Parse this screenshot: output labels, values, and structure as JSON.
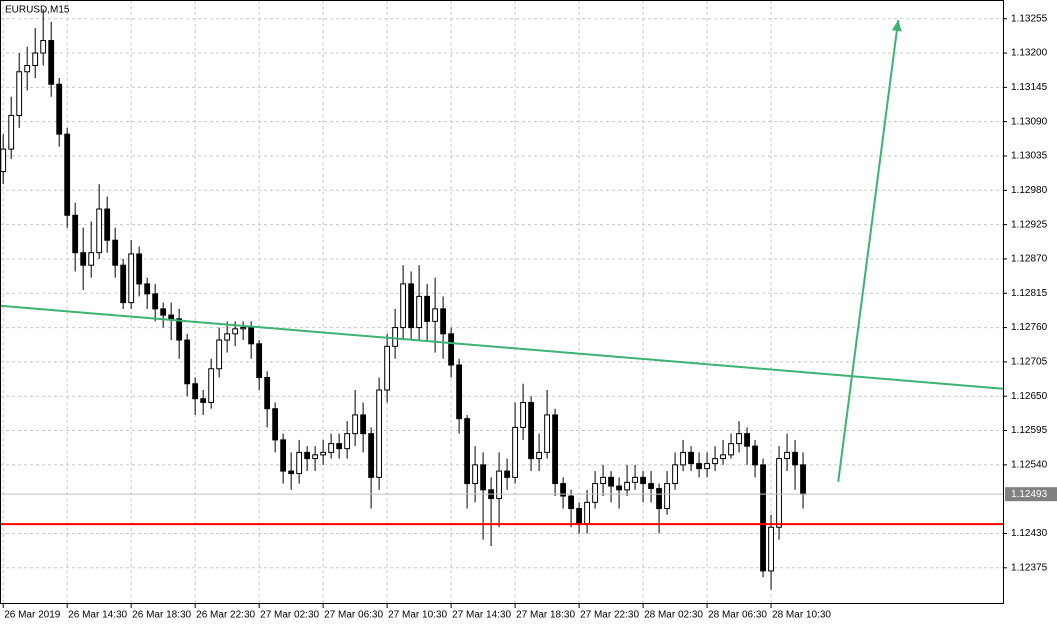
{
  "chart_data": {
    "type": "candlestick",
    "title": "EURUSD,M15",
    "categories": [
      "26 Mar 2019",
      null,
      null,
      null,
      null,
      null,
      null,
      null,
      "26 Mar 14:30",
      null,
      null,
      null,
      null,
      null,
      null,
      null,
      "26 Mar 18:30",
      null,
      null,
      null,
      null,
      null,
      null,
      null,
      "26 Mar 22:30",
      null,
      null,
      null,
      null,
      null,
      null,
      null,
      "27 Mar 02:30",
      null,
      null,
      null,
      null,
      null,
      null,
      null,
      "27 Mar 06:30",
      null,
      null,
      null,
      null,
      null,
      null,
      null,
      "27 Mar 10:30",
      null,
      null,
      null,
      null,
      null,
      null,
      null,
      "27 Mar 14:30",
      null,
      null,
      null,
      null,
      null,
      null,
      null,
      "27 Mar 18:30",
      null,
      null,
      null,
      null,
      null,
      null,
      null,
      "27 Mar 22:30",
      null,
      null,
      null,
      null,
      null,
      null,
      null,
      "28 Mar 02:30",
      null,
      null,
      null,
      null,
      null,
      null,
      null,
      "28 Mar 06:30",
      null,
      null,
      null,
      null,
      null,
      null,
      null,
      "28 Mar 10:30",
      null,
      null,
      null,
      null
    ],
    "candles": [
      [
        1.1301,
        1.1307,
        1.1299,
        1.13046
      ],
      [
        1.13046,
        1.1313,
        1.1303,
        1.131
      ],
      [
        1.131,
        1.132,
        1.1308,
        1.1317
      ],
      [
        1.1317,
        1.1321,
        1.1314,
        1.1318
      ],
      [
        1.1318,
        1.1324,
        1.1316,
        1.132
      ],
      [
        1.132,
        1.1327,
        1.1318,
        1.1322
      ],
      [
        1.1322,
        1.1325,
        1.1313,
        1.1315
      ],
      [
        1.1315,
        1.1316,
        1.1305,
        1.1307
      ],
      [
        1.1307,
        1.1308,
        1.1292,
        1.1294
      ],
      [
        1.1294,
        1.1296,
        1.1285,
        1.1288
      ],
      [
        1.1288,
        1.1292,
        1.1282,
        1.1286
      ],
      [
        1.1286,
        1.1293,
        1.1284,
        1.1288
      ],
      [
        1.1288,
        1.1299,
        1.1287,
        1.1295
      ],
      [
        1.1295,
        1.1297,
        1.1288,
        1.129
      ],
      [
        1.129,
        1.1292,
        1.1284,
        1.1286
      ],
      [
        1.1286,
        1.1287,
        1.1279,
        1.128
      ],
      [
        1.128,
        1.129,
        1.1279,
        1.12878
      ],
      [
        1.12878,
        1.1289,
        1.1281,
        1.1283
      ],
      [
        1.1283,
        1.1284,
        1.1279,
        1.12814
      ],
      [
        1.12814,
        1.1283,
        1.1277,
        1.1279
      ],
      [
        1.1279,
        1.128,
        1.1276,
        1.1278
      ],
      [
        1.1278,
        1.128,
        1.1274,
        1.12774
      ],
      [
        1.12774,
        1.1279,
        1.1271,
        1.1274
      ],
      [
        1.1274,
        1.1275,
        1.1265,
        1.1267
      ],
      [
        1.1267,
        1.1268,
        1.1262,
        1.12646
      ],
      [
        1.12646,
        1.1266,
        1.1262,
        1.1264
      ],
      [
        1.1264,
        1.1271,
        1.1263,
        1.12694
      ],
      [
        1.12694,
        1.1276,
        1.1268,
        1.1274
      ],
      [
        1.1274,
        1.1277,
        1.1272,
        1.1275
      ],
      [
        1.1275,
        1.1277,
        1.1273,
        1.12758
      ],
      [
        1.12758,
        1.1277,
        1.1274,
        1.1276
      ],
      [
        1.1276,
        1.1277,
        1.1271,
        1.12734
      ],
      [
        1.12734,
        1.1274,
        1.1266,
        1.1268
      ],
      [
        1.1268,
        1.1269,
        1.126,
        1.1263
      ],
      [
        1.1263,
        1.1264,
        1.1256,
        1.1258
      ],
      [
        1.1258,
        1.1259,
        1.1251,
        1.1253
      ],
      [
        1.1253,
        1.1256,
        1.125,
        1.12526
      ],
      [
        1.12526,
        1.1258,
        1.1251,
        1.1256
      ],
      [
        1.1256,
        1.1257,
        1.1253,
        1.1255
      ],
      [
        1.1255,
        1.1257,
        1.1253,
        1.12556
      ],
      [
        1.12556,
        1.1258,
        1.1254,
        1.1256
      ],
      [
        1.1256,
        1.1259,
        1.1255,
        1.12574
      ],
      [
        1.12574,
        1.1259,
        1.1255,
        1.12566
      ],
      [
        1.12566,
        1.1261,
        1.1255,
        1.1259
      ],
      [
        1.1259,
        1.1266,
        1.1257,
        1.1262
      ],
      [
        1.1262,
        1.1264,
        1.1256,
        1.1259
      ],
      [
        1.1259,
        1.126,
        1.1247,
        1.1252
      ],
      [
        1.1252,
        1.1268,
        1.125,
        1.1266
      ],
      [
        1.1266,
        1.1275,
        1.1264,
        1.1273
      ],
      [
        1.1273,
        1.1279,
        1.1271,
        1.1276
      ],
      [
        1.1276,
        1.1286,
        1.1274,
        1.1283
      ],
      [
        1.1283,
        1.1285,
        1.1274,
        1.1276
      ],
      [
        1.1276,
        1.1286,
        1.1274,
        1.1281
      ],
      [
        1.1281,
        1.1283,
        1.1274,
        1.1277
      ],
      [
        1.1277,
        1.1284,
        1.1272,
        1.1279
      ],
      [
        1.1279,
        1.1281,
        1.1271,
        1.1275
      ],
      [
        1.1275,
        1.1276,
        1.1268,
        1.127
      ],
      [
        1.127,
        1.1271,
        1.1259,
        1.12614
      ],
      [
        1.12614,
        1.1262,
        1.1247,
        1.1251
      ],
      [
        1.1251,
        1.1257,
        1.1248,
        1.1254
      ],
      [
        1.1254,
        1.1256,
        1.1242,
        1.125
      ],
      [
        1.125,
        1.1252,
        1.1241,
        1.12486
      ],
      [
        1.12486,
        1.1256,
        1.1244,
        1.1253
      ],
      [
        1.1253,
        1.1255,
        1.125,
        1.1252
      ],
      [
        1.1252,
        1.1264,
        1.1251,
        1.126
      ],
      [
        1.126,
        1.1267,
        1.1258,
        1.1264
      ],
      [
        1.1264,
        1.1265,
        1.1253,
        1.1255
      ],
      [
        1.1255,
        1.1259,
        1.1253,
        1.1256
      ],
      [
        1.1256,
        1.1266,
        1.1255,
        1.1262
      ],
      [
        1.1262,
        1.1263,
        1.1249,
        1.1251
      ],
      [
        1.1251,
        1.1252,
        1.1247,
        1.1249
      ],
      [
        1.1249,
        1.125,
        1.1244,
        1.1247
      ],
      [
        1.1247,
        1.1248,
        1.1243,
        1.12446
      ],
      [
        1.12446,
        1.125,
        1.1243,
        1.1248
      ],
      [
        1.1248,
        1.1253,
        1.1247,
        1.1251
      ],
      [
        1.1251,
        1.1254,
        1.1249,
        1.1252
      ],
      [
        1.1252,
        1.1253,
        1.1248,
        1.12506
      ],
      [
        1.12506,
        1.1252,
        1.1247,
        1.125
      ],
      [
        1.125,
        1.1254,
        1.1249,
        1.12512
      ],
      [
        1.12512,
        1.1254,
        1.125,
        1.1252
      ],
      [
        1.1252,
        1.1253,
        1.1248,
        1.1251
      ],
      [
        1.1251,
        1.1253,
        1.1248,
        1.12502
      ],
      [
        1.12502,
        1.1251,
        1.1243,
        1.1247
      ],
      [
        1.1247,
        1.1253,
        1.1246,
        1.1251
      ],
      [
        1.1251,
        1.1256,
        1.125,
        1.1254
      ],
      [
        1.1254,
        1.1258,
        1.1253,
        1.1256
      ],
      [
        1.1256,
        1.1257,
        1.1253,
        1.12542
      ],
      [
        1.12542,
        1.1256,
        1.1252,
        1.12534
      ],
      [
        1.12534,
        1.1256,
        1.1252,
        1.12542
      ],
      [
        1.12542,
        1.1257,
        1.1253,
        1.1255
      ],
      [
        1.1255,
        1.1258,
        1.1254,
        1.12556
      ],
      [
        1.12556,
        1.1259,
        1.1255,
        1.12574
      ],
      [
        1.12574,
        1.1261,
        1.1256,
        1.1259
      ],
      [
        1.1259,
        1.126,
        1.1254,
        1.1257
      ],
      [
        1.1257,
        1.1258,
        1.1252,
        1.1254
      ],
      [
        1.1254,
        1.1255,
        1.1236,
        1.1237
      ],
      [
        1.1237,
        1.1246,
        1.1234,
        1.1244
      ],
      [
        1.1244,
        1.1257,
        1.1242,
        1.1255
      ],
      [
        1.1255,
        1.1259,
        1.1253,
        1.1256
      ],
      [
        1.1256,
        1.1258,
        1.125,
        1.1254
      ],
      [
        1.1254,
        1.1256,
        1.1247,
        1.12493
      ]
    ],
    "colors": {
      "up": "#ffffff",
      "down": "#000000",
      "outline": "#000000"
    },
    "xlim": [
      -0.4,
      125
    ],
    "ylim": [
      1.12317,
      1.13285
    ],
    "yticks": [
      1.13255,
      {
        "value": 1.132,
        "label": "1.13200"
      },
      1.13145,
      {
        "value": 1.1309,
        "label": "1.13090"
      },
      1.13035,
      {
        "value": 1.1298,
        "label": "1.12980"
      },
      1.12925,
      {
        "value": 1.1287,
        "label": "1.12870"
      },
      1.12815,
      {
        "value": 1.1276,
        "label": "1.12760"
      },
      1.12705,
      {
        "value": 1.1265,
        "label": "1.12650"
      },
      1.12595,
      {
        "value": 1.1254,
        "label": "1.12540"
      },
      {
        "value": 1.1243,
        "label": "1.12430"
      },
      1.12375
    ],
    "grid": true,
    "current_price": 1.12493,
    "current_price_color": "#c0c0c0",
    "lines": [
      {
        "x": [
          -0.4,
          125
        ],
        "y": [
          1.12795,
          1.12662
        ],
        "color": "#3cb371"
      },
      {
        "x": [
          -0.4,
          125
        ],
        "y": [
          1.12445,
          1.12445
        ],
        "color": "#ff0000"
      },
      {
        "x": [
          104.4,
          111.9
        ],
        "y": [
          1.12513,
          1.13253
        ],
        "color": "#3cb371",
        "arrow": true
      }
    ]
  }
}
